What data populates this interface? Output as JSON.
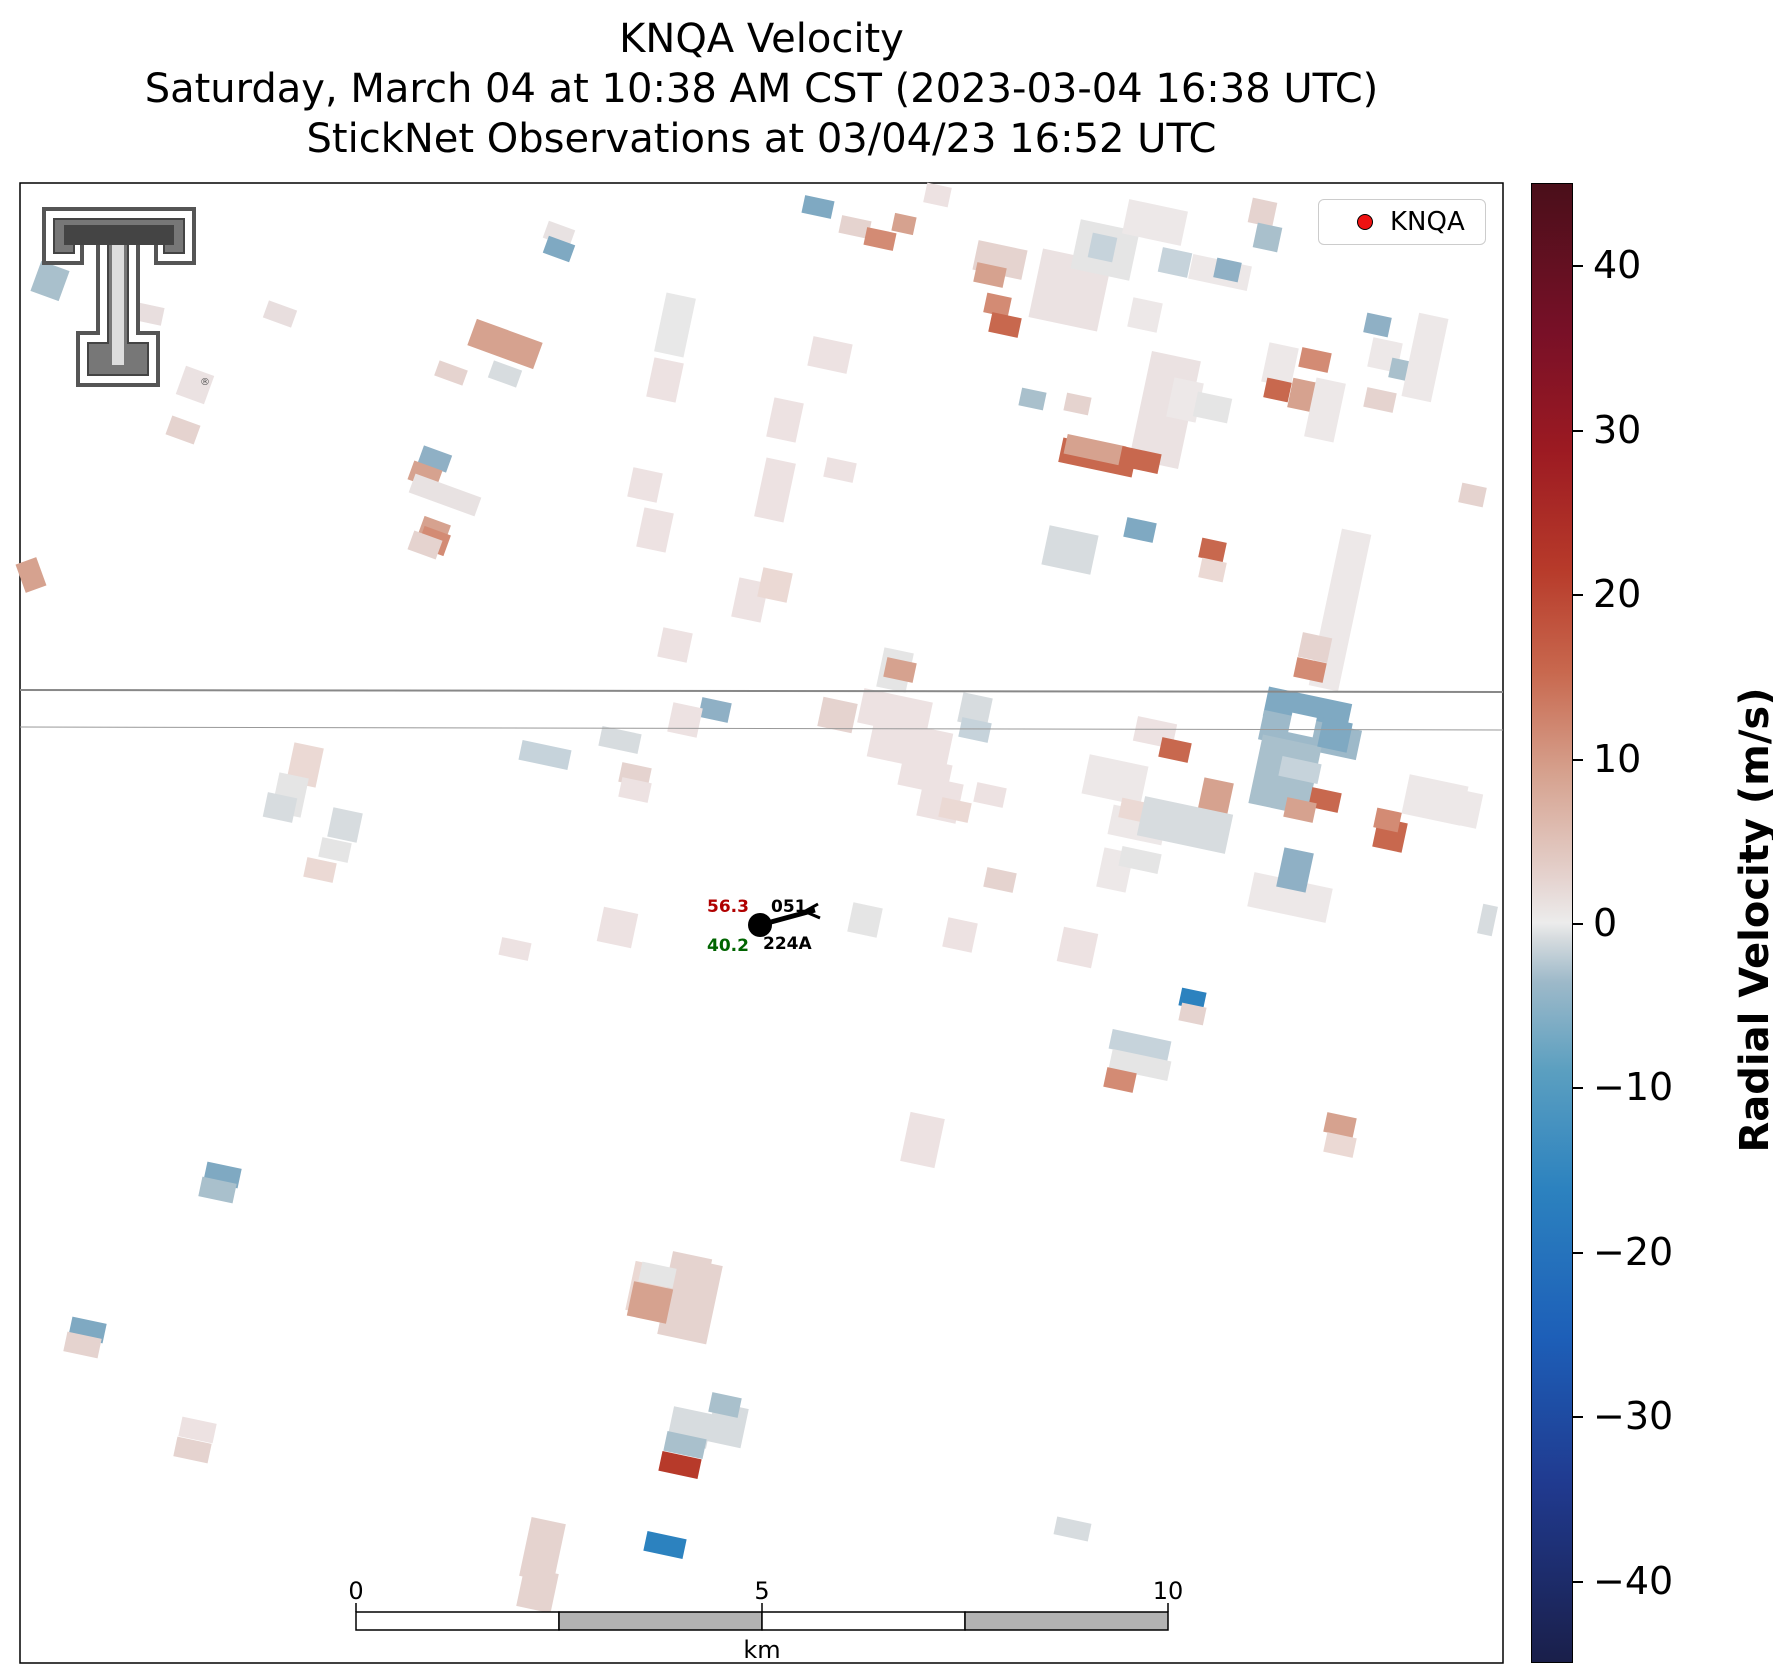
{
  "title": {
    "line1": "KNQA Velocity",
    "line2": "Saturday, March 04 at 10:38 AM CST (2023-03-04 16:38 UTC)",
    "line3": "StickNet Observations at 03/04/23 16:52 UTC"
  },
  "legend": {
    "label": "KNQA"
  },
  "colorbar": {
    "title": "Radial Velocity (m/s)",
    "ticks": [
      "40",
      "30",
      "20",
      "10",
      "0",
      "−10",
      "−20",
      "−30",
      "−40"
    ],
    "range": [
      -45,
      45
    ]
  },
  "station": {
    "temperature": "56.3",
    "dewpoint": "40.2",
    "pressure": "051",
    "id": "224A"
  },
  "scalebar": {
    "ticks": [
      "0",
      "5",
      "10"
    ],
    "unit": "km"
  },
  "logo": {
    "name": "texas-tech-double-t-logo"
  },
  "colors": {
    "inbound": "#2c82bf",
    "outbound": "#c8684e",
    "zero": "#ececec"
  }
}
